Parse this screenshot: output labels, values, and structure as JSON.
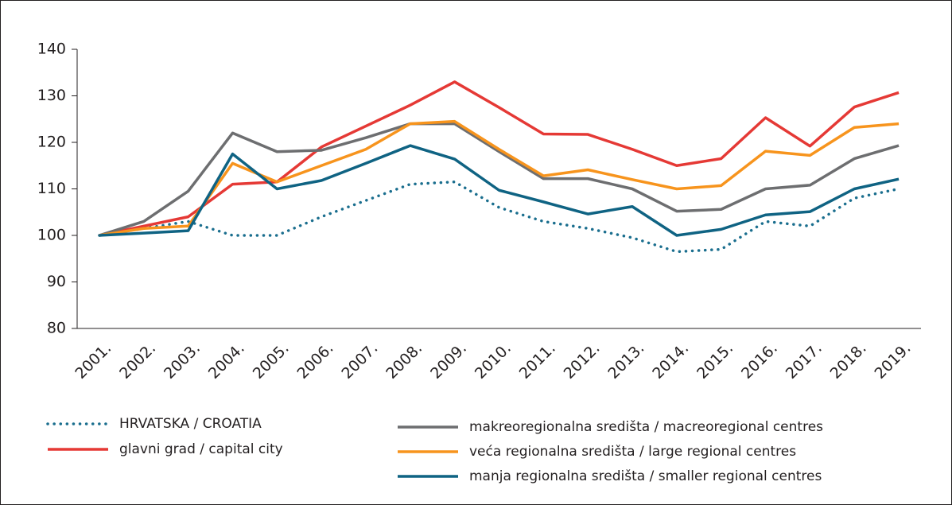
{
  "chart_data": {
    "type": "line",
    "categories": [
      "2001.",
      "2002.",
      "2003.",
      "2004.",
      "2005.",
      "2006.",
      "2007.",
      "2008.",
      "2009.",
      "2010.",
      "2011.",
      "2012.",
      "2013.",
      "2014.",
      "2015.",
      "2016.",
      "2017.",
      "2018.",
      "2019."
    ],
    "series": [
      {
        "name": "HRVATSKA / CROATIA",
        "color": "#1a6e8e",
        "style": "dotted",
        "values": [
          100,
          101.5,
          103,
          100,
          100,
          104,
          107.5,
          111,
          111.5,
          106,
          103,
          101.5,
          99.5,
          96.5,
          97,
          103,
          102,
          108,
          110
        ]
      },
      {
        "name": "glavni grad / capital city",
        "color": "#e53935",
        "style": "solid",
        "values": [
          100,
          102,
          104,
          111,
          111.5,
          119,
          123.5,
          128,
          133,
          127.5,
          121.8,
          121.7,
          118.5,
          115,
          116.5,
          125.3,
          119.2,
          127.6,
          130.7
        ]
      },
      {
        "name": "makreoregionalna središta / macreoregional centres",
        "color": "#6d6e70",
        "style": "solid",
        "values": [
          100,
          103,
          109.5,
          122,
          118,
          118.3,
          121,
          124,
          124,
          118,
          112.2,
          112.2,
          110,
          105.2,
          105.6,
          110,
          110.8,
          116.5,
          119.3
        ]
      },
      {
        "name": "veća regionalna središta / large regional centres",
        "color": "#f7941d",
        "style": "solid",
        "values": [
          100,
          101.5,
          102,
          115.5,
          111.5,
          115,
          118.5,
          124,
          124.5,
          118.5,
          112.8,
          114.1,
          112,
          110,
          110.7,
          118.1,
          117.2,
          123.2,
          124
        ]
      },
      {
        "name": "manja regionalna središta / smaller regional centres",
        "color": "#0f6383",
        "style": "solid",
        "values": [
          100,
          100.5,
          101,
          117.5,
          110,
          111.8,
          115.5,
          119.3,
          116.4,
          109.7,
          107.2,
          104.6,
          106.2,
          100,
          101.3,
          104.4,
          105.1,
          110,
          112.1
        ]
      }
    ],
    "ylim": [
      80,
      140
    ],
    "yticks": [
      80,
      90,
      100,
      110,
      120,
      130,
      140
    ],
    "grid": false
  }
}
